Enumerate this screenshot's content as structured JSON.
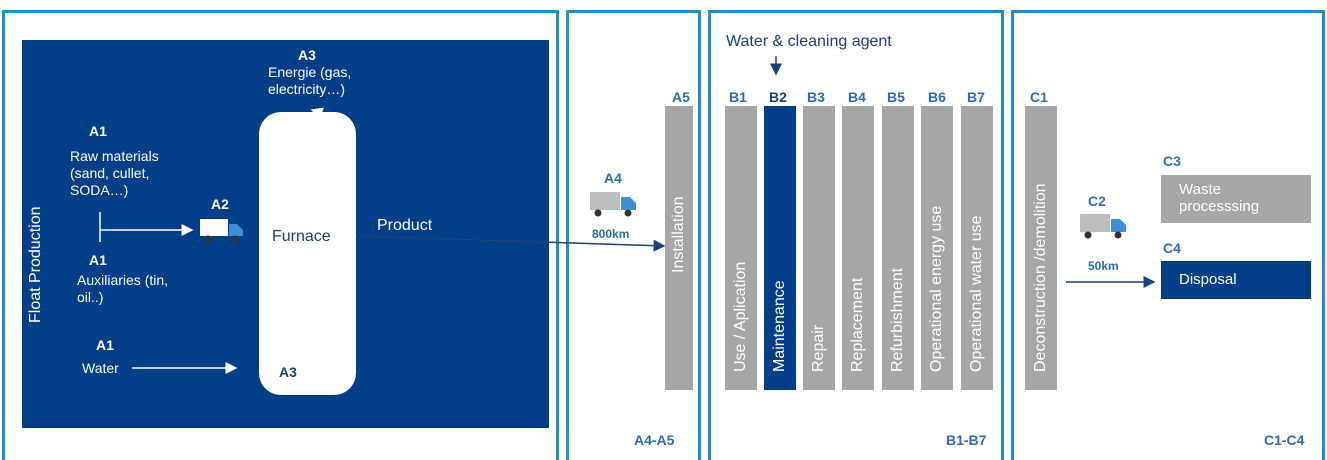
{
  "production": {
    "side_label": "Float Production",
    "a3_top_code": "A3",
    "a3_top_text": "Energie (gas, electricity…)",
    "a1_raw_code": "A1",
    "a1_raw_text": "Raw materials (sand, cullet, SODA…)",
    "a2_code": "A2",
    "a1_aux_code": "A1",
    "a1_aux_text": "Auxiliaries (tin, oil..)",
    "a1_water_code": "A1",
    "a1_water_text": "Water",
    "furnace_label": "Furnace",
    "a3_bottom_code": "A3",
    "product_label": "Product"
  },
  "stage_a4_a5": {
    "a4_code": "A4",
    "distance": "800km",
    "a5_code": "A5",
    "installation": "Installation",
    "group_label": "A4-A5"
  },
  "stage_b": {
    "input_label": "Water & cleaning agent",
    "group_label": "B1-B7",
    "modules": [
      {
        "code": "B1",
        "label": "Use / Aplication"
      },
      {
        "code": "B2",
        "label": "Maintenance"
      },
      {
        "code": "B3",
        "label": "Repair"
      },
      {
        "code": "B4",
        "label": "Replacement"
      },
      {
        "code": "B5",
        "label": "Refurbishment"
      },
      {
        "code": "B6",
        "label": "Operational energy use"
      },
      {
        "code": "B7",
        "label": "Operational water use"
      }
    ]
  },
  "stage_c": {
    "c1_code": "C1",
    "c1_label": "Deconstruction /demolition",
    "c2_code": "C2",
    "distance": "50km",
    "c3_code": "C3",
    "c3_label": "Waste processsing",
    "c4_code": "C4",
    "c4_label": "Disposal",
    "group_label": "C1-C4"
  },
  "colors": {
    "frame": "#1f8fd0",
    "panel": "#003f87",
    "module": "#a6a6a6"
  }
}
